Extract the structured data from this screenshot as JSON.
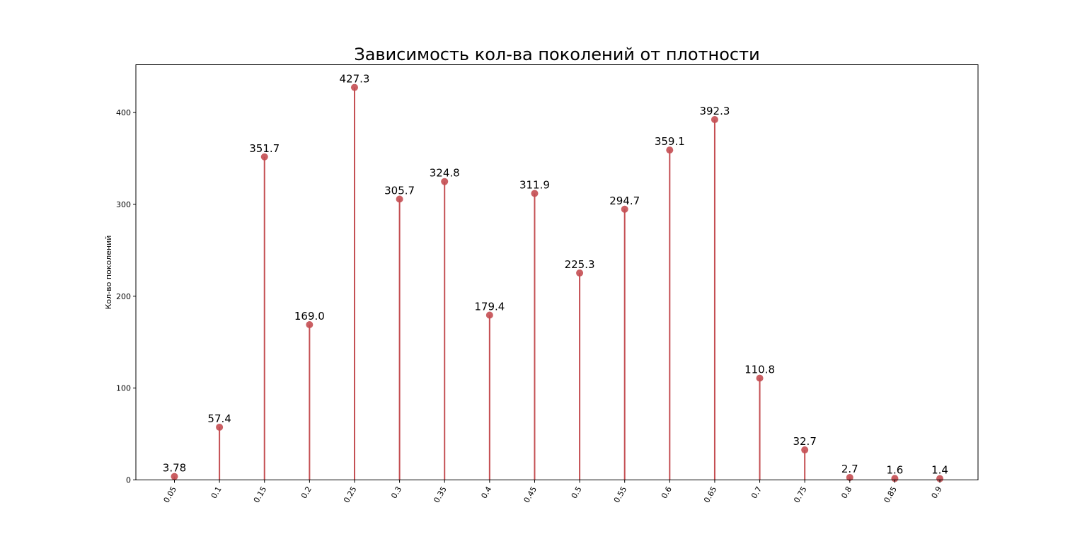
{
  "chart_data": {
    "type": "stem",
    "title": "Зависимость кол-ва поколений от плотности",
    "xlabel": "",
    "ylabel": "Кол-во поколений",
    "categories": [
      "0.05",
      "0.1",
      "0.15",
      "0.2",
      "0.25",
      "0.3",
      "0.35",
      "0.4",
      "0.45",
      "0.5",
      "0.55",
      "0.6",
      "0.65",
      "0.7",
      "0.75",
      "0.8",
      "0.85",
      "0.9"
    ],
    "values": [
      3.78,
      57.4,
      351.7,
      169.0,
      427.3,
      305.7,
      324.8,
      179.4,
      311.9,
      225.3,
      294.7,
      359.1,
      392.3,
      110.8,
      32.7,
      2.7,
      1.6,
      1.4
    ],
    "value_labels": [
      "3.78",
      "57.4",
      "351.7",
      "169.0",
      "427.3",
      "305.7",
      "324.8",
      "179.4",
      "311.9",
      "225.3",
      "294.7",
      "359.1",
      "392.3",
      "110.8",
      "32.7",
      "2.7",
      "1.6",
      "1.4"
    ],
    "ylim": [
      0,
      452
    ],
    "yticks": [
      0,
      100,
      200,
      300,
      400
    ],
    "xtick_rotation": 60,
    "grid": false,
    "color": "#c44e52"
  }
}
